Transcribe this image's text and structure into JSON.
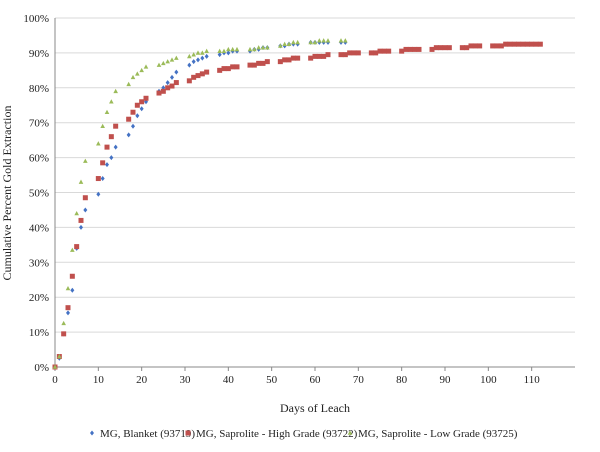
{
  "chart_data": {
    "type": "scatter",
    "title": "",
    "xlabel": "Days of Leach",
    "ylabel": "Cumulative Percent Gold Extraction",
    "xlim": [
      0,
      120
    ],
    "ylim": [
      0,
      100
    ],
    "x_ticks": [
      "0",
      "10",
      "20",
      "30",
      "40",
      "50",
      "60",
      "70",
      "80",
      "90",
      "100",
      "110"
    ],
    "x_tick_values": [
      0,
      10,
      20,
      30,
      40,
      50,
      60,
      70,
      80,
      90,
      100,
      110
    ],
    "y_ticks": [
      "0%",
      "10%",
      "20%",
      "30%",
      "40%",
      "50%",
      "60%",
      "70%",
      "80%",
      "90%",
      "100%"
    ],
    "y_tick_values": [
      0,
      10,
      20,
      30,
      40,
      50,
      60,
      70,
      80,
      90,
      100
    ],
    "grid": "horizontal",
    "legend_position": "bottom",
    "series": [
      {
        "name": "MG, Blanket (93719)",
        "color": "#4472C4",
        "marker": "diamond",
        "points": [
          [
            0,
            0
          ],
          [
            1,
            2.5
          ],
          [
            2,
            9.5
          ],
          [
            3,
            15.5
          ],
          [
            4,
            22
          ],
          [
            5,
            34
          ],
          [
            6,
            40
          ],
          [
            7,
            45
          ],
          [
            10,
            49.5
          ],
          [
            11,
            54
          ],
          [
            12,
            58
          ],
          [
            13,
            60
          ],
          [
            14,
            63
          ],
          [
            17,
            66.5
          ],
          [
            18,
            69
          ],
          [
            19,
            72
          ],
          [
            20,
            74
          ],
          [
            21,
            76
          ],
          [
            24,
            79
          ],
          [
            25,
            80
          ],
          [
            26,
            81.5
          ],
          [
            27,
            83
          ],
          [
            28,
            84.5
          ],
          [
            31,
            86.5
          ],
          [
            32,
            87.5
          ],
          [
            33,
            88
          ],
          [
            34,
            88.5
          ],
          [
            35,
            89
          ],
          [
            38,
            89.5
          ],
          [
            39,
            90
          ],
          [
            40,
            90
          ],
          [
            41,
            90.5
          ],
          [
            42,
            90.5
          ],
          [
            45,
            90.5
          ],
          [
            46,
            91
          ],
          [
            47,
            91
          ],
          [
            48,
            91.5
          ],
          [
            49,
            91.5
          ],
          [
            52,
            92
          ],
          [
            53,
            92
          ],
          [
            54,
            92.5
          ],
          [
            55,
            92.5
          ],
          [
            56,
            92.5
          ],
          [
            59,
            93
          ],
          [
            60,
            93
          ],
          [
            61,
            93
          ],
          [
            62,
            93
          ],
          [
            63,
            93
          ],
          [
            66,
            93
          ],
          [
            67,
            93
          ]
        ]
      },
      {
        "name": "MG, Saprolite - High Grade (93722)",
        "color": "#C0504D",
        "marker": "square",
        "points": [
          [
            0,
            0
          ],
          [
            1,
            3
          ],
          [
            2,
            9.5
          ],
          [
            3,
            17
          ],
          [
            4,
            26
          ],
          [
            5,
            34.5
          ],
          [
            6,
            42
          ],
          [
            7,
            48.5
          ],
          [
            10,
            54
          ],
          [
            11,
            58.5
          ],
          [
            12,
            63
          ],
          [
            13,
            66
          ],
          [
            14,
            69
          ],
          [
            17,
            71
          ],
          [
            18,
            73
          ],
          [
            19,
            75
          ],
          [
            20,
            76
          ],
          [
            21,
            77
          ],
          [
            24,
            78.5
          ],
          [
            25,
            79
          ],
          [
            26,
            80
          ],
          [
            27,
            80.5
          ],
          [
            28,
            81.5
          ],
          [
            31,
            82
          ],
          [
            32,
            83
          ],
          [
            33,
            83.5
          ],
          [
            34,
            84
          ],
          [
            35,
            84.5
          ],
          [
            38,
            85
          ],
          [
            39,
            85.5
          ],
          [
            40,
            85.5
          ],
          [
            41,
            86
          ],
          [
            42,
            86
          ],
          [
            45,
            86.5
          ],
          [
            46,
            86.5
          ],
          [
            47,
            87
          ],
          [
            48,
            87
          ],
          [
            49,
            87.5
          ],
          [
            52,
            87.5
          ],
          [
            53,
            88
          ],
          [
            54,
            88
          ],
          [
            55,
            88.5
          ],
          [
            56,
            88.5
          ],
          [
            59,
            88.5
          ],
          [
            60,
            89
          ],
          [
            61,
            89
          ],
          [
            62,
            89
          ],
          [
            63,
            89.5
          ],
          [
            66,
            89.5
          ],
          [
            67,
            89.5
          ],
          [
            68,
            90
          ],
          [
            69,
            90
          ],
          [
            70,
            90
          ],
          [
            73,
            90
          ],
          [
            74,
            90
          ],
          [
            75,
            90.5
          ],
          [
            76,
            90.5
          ],
          [
            77,
            90.5
          ],
          [
            80,
            90.5
          ],
          [
            81,
            91
          ],
          [
            82,
            91
          ],
          [
            83,
            91
          ],
          [
            84,
            91
          ],
          [
            87,
            91
          ],
          [
            88,
            91.5
          ],
          [
            89,
            91.5
          ],
          [
            90,
            91.5
          ],
          [
            91,
            91.5
          ],
          [
            94,
            91.5
          ],
          [
            95,
            91.5
          ],
          [
            96,
            92
          ],
          [
            97,
            92
          ],
          [
            98,
            92
          ],
          [
            101,
            92
          ],
          [
            102,
            92
          ],
          [
            103,
            92
          ],
          [
            104,
            92.5
          ],
          [
            105,
            92.5
          ],
          [
            106,
            92.5
          ],
          [
            107,
            92.5
          ],
          [
            108,
            92.5
          ],
          [
            109,
            92.5
          ],
          [
            110,
            92.5
          ],
          [
            111,
            92.5
          ],
          [
            112,
            92.5
          ]
        ]
      },
      {
        "name": "MG, Saprolite - Low Grade (93725)",
        "color": "#9BBB59",
        "marker": "triangle",
        "points": [
          [
            0,
            0
          ],
          [
            1,
            3
          ],
          [
            2,
            12.5
          ],
          [
            3,
            22.5
          ],
          [
            4,
            33.5
          ],
          [
            5,
            44
          ],
          [
            6,
            53
          ],
          [
            7,
            59
          ],
          [
            10,
            64
          ],
          [
            11,
            69
          ],
          [
            12,
            73
          ],
          [
            13,
            76
          ],
          [
            14,
            79
          ],
          [
            17,
            81
          ],
          [
            18,
            83
          ],
          [
            19,
            84
          ],
          [
            20,
            85
          ],
          [
            21,
            86
          ],
          [
            24,
            86.5
          ],
          [
            25,
            87
          ],
          [
            26,
            87.5
          ],
          [
            27,
            88
          ],
          [
            28,
            88.5
          ],
          [
            31,
            89
          ],
          [
            32,
            89.5
          ],
          [
            33,
            90
          ],
          [
            34,
            90
          ],
          [
            35,
            90.5
          ],
          [
            38,
            90.5
          ],
          [
            39,
            90.5
          ],
          [
            40,
            91
          ],
          [
            41,
            91
          ],
          [
            42,
            91
          ],
          [
            45,
            91
          ],
          [
            46,
            91
          ],
          [
            47,
            91.5
          ],
          [
            48,
            91.5
          ],
          [
            49,
            91.5
          ],
          [
            52,
            92
          ],
          [
            53,
            92.5
          ],
          [
            54,
            92.5
          ],
          [
            55,
            93
          ],
          [
            56,
            93
          ],
          [
            59,
            93
          ],
          [
            60,
            93
          ],
          [
            61,
            93.5
          ],
          [
            62,
            93.5
          ],
          [
            63,
            93.5
          ],
          [
            66,
            93.5
          ],
          [
            67,
            93.5
          ]
        ]
      }
    ]
  }
}
